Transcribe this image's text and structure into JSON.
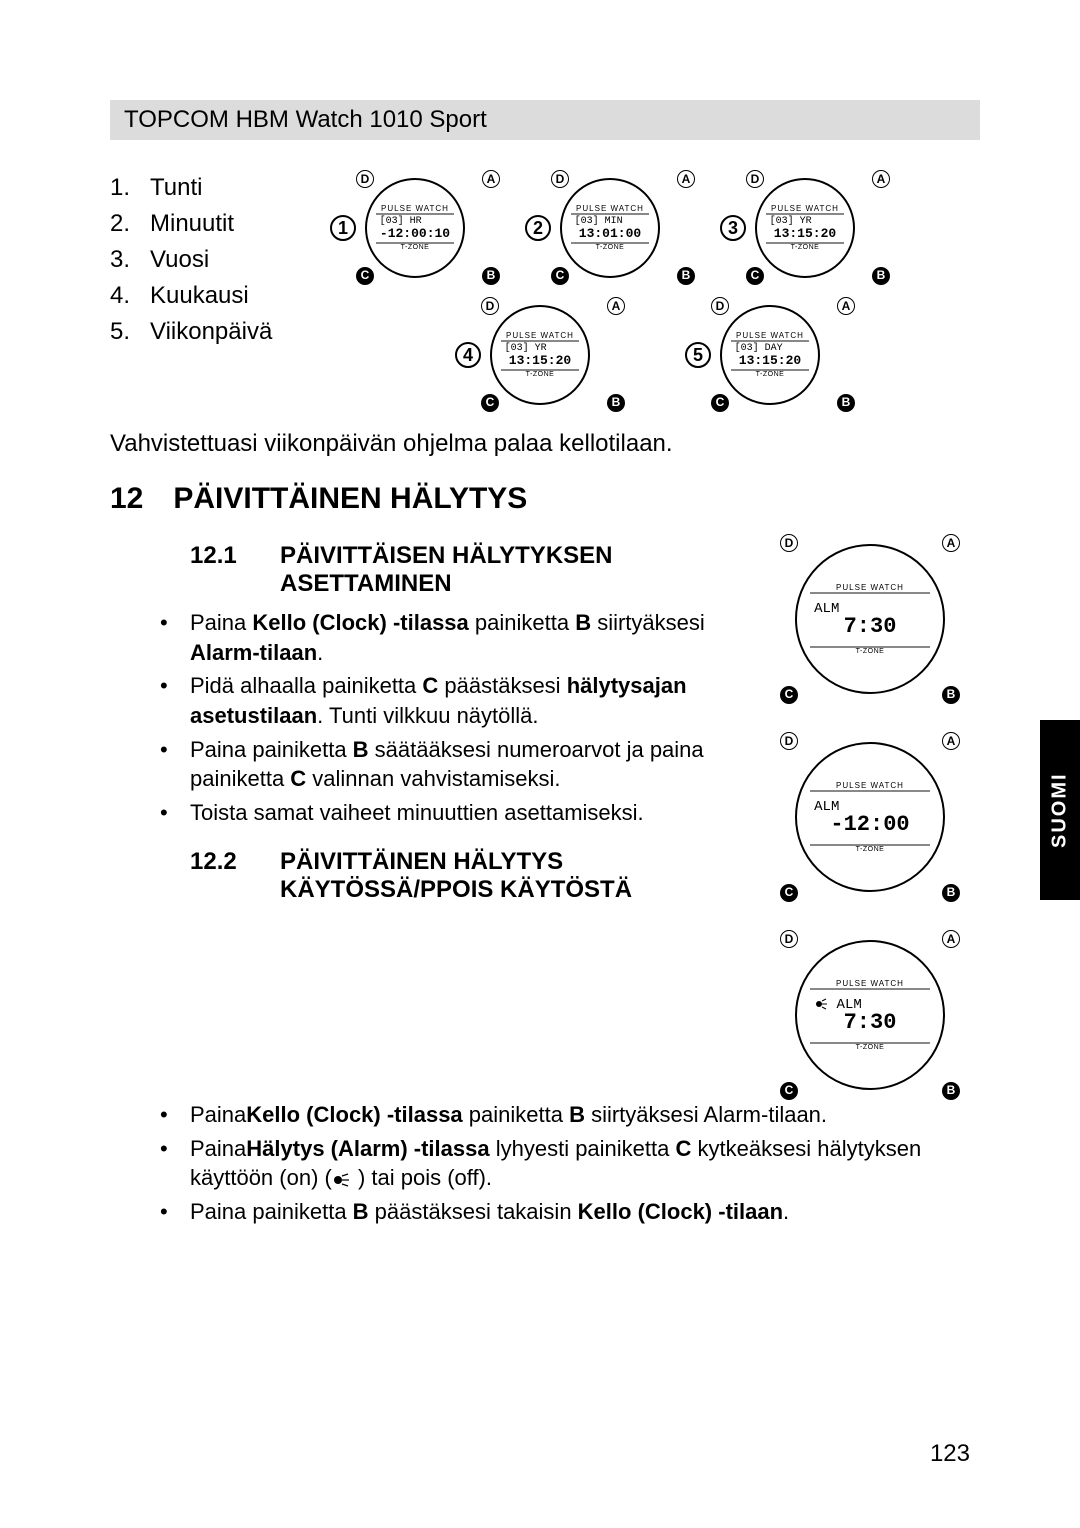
{
  "header": {
    "title": "TOPCOM HBM Watch 1010 Sport"
  },
  "legend": [
    {
      "num": "1.",
      "label": "Tunti"
    },
    {
      "num": "2.",
      "label": "Minuutit"
    },
    {
      "num": "3.",
      "label": "Vuosi"
    },
    {
      "num": "4.",
      "label": "Kuukausi"
    },
    {
      "num": "5.",
      "label": "Viikonpäivä"
    }
  ],
  "dials_top": [
    {
      "badge": "1",
      "l1": "[03]   HR",
      "l2": "-12:00:10"
    },
    {
      "badge": "2",
      "l1": "[03]  MIN",
      "l2": "13:01:00"
    },
    {
      "badge": "3",
      "l1": "[03]   YR",
      "l2": "13:15:20"
    },
    {
      "badge": "4",
      "l1": "[03]   YR",
      "l2": "13:15:20"
    },
    {
      "badge": "5",
      "l1": "[03]  DAY",
      "l2": "13:15:20"
    }
  ],
  "corner_labels": {
    "D": "D",
    "A": "A",
    "C": "C",
    "B": "B"
  },
  "dial_labels": {
    "top": "PULSE WATCH",
    "bottom": "T-ZONE"
  },
  "confirm_text": "Vahvistettuasi viikonpäivän ohjelma palaa kellotilaan.",
  "section12": {
    "num": "12",
    "title": "PÄIVITTÄINEN HÄLYTYS",
    "s1": {
      "num": "12.1",
      "title": "PÄIVITTÄISEN HÄLYTYKSEN ASETTAMINEN",
      "bullets": [
        {
          "pre": "Paina ",
          "b1": "Kello (Clock) -tilassa",
          "mid": " painiketta ",
          "b2": "B",
          "post": " siirtyäksesi ",
          "b3": "Alarm-tilaan",
          "tail": "."
        },
        {
          "pre": "Pidä alhaalla painiketta ",
          "b1": "C",
          "mid": " päästäksesi ",
          "b2": "hälytysajan asetustilaan",
          "post": ". Tunti vilkkuu näytöllä."
        },
        {
          "pre": "Paina painiketta ",
          "b1": "B",
          "mid": " säätääksesi numeroarvot ja paina painiketta ",
          "b2": "C",
          "post": " valinnan vahvistamiseksi."
        },
        {
          "pre": "Toista samat vaiheet minuuttien asettamiseksi."
        }
      ]
    },
    "s2": {
      "num": "12.2",
      "title": "PÄIVITTÄINEN HÄLYTYS KÄYTÖSSÄ/PPOIS KÄYTÖSTÄ",
      "bullets": [
        {
          "pre": "Paina",
          "b1": "Kello (Clock) -tilassa",
          "mid": " painiketta ",
          "b2": "B",
          "post": " siirtyäksesi Alarm-tilaan."
        },
        {
          "pre": "Paina",
          "b1": "Hälytys (Alarm) -tilassa",
          "mid": " lyhyesti painiketta ",
          "b2": "C",
          "post": " kytkeäksesi hälytyksen käyttöön (on) (",
          "icon": true,
          "tail": " ) tai pois (off)."
        },
        {
          "pre": "Paina painiketta ",
          "b1": "B",
          "mid": " päästäksesi takaisin ",
          "b2": "Kello (Clock) -tilaan",
          "post": "."
        }
      ]
    }
  },
  "right_dials": [
    {
      "l1": "ALM",
      "l2": "7:30"
    },
    {
      "l1": "ALM",
      "l2": "-12:00"
    },
    {
      "l1": "ALM",
      "l2": "7:30",
      "alarm": true
    }
  ],
  "side_tab": "SUOMI",
  "page_number": "123",
  "colors": {
    "header_bg": "#dcdcdc",
    "text": "#000000",
    "background": "#ffffff",
    "side_tab_bg": "#000000",
    "side_tab_text": "#ffffff"
  },
  "typography": {
    "body_fontsize": 24,
    "h1_fontsize": 30,
    "h2_fontsize": 24,
    "bullet_fontsize": 22
  }
}
